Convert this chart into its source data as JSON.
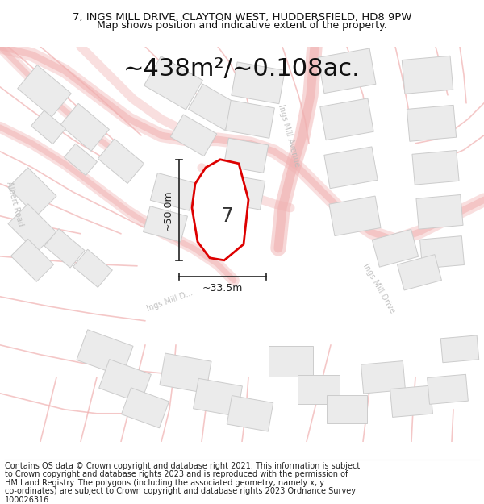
{
  "title_line1": "7, INGS MILL DRIVE, CLAYTON WEST, HUDDERSFIELD, HD8 9PW",
  "title_line2": "Map shows position and indicative extent of the property.",
  "area_text": "~438m²/~0.108ac.",
  "dim_height": "~50.0m",
  "dim_width": "~33.5m",
  "plot_number": "7",
  "footer_lines": [
    "Contains OS data © Crown copyright and database right 2021. This information is subject",
    "to Crown copyright and database rights 2023 and is reproduced with the permission of",
    "HM Land Registry. The polygons (including the associated geometry, namely x, y",
    "co-ordinates) are subject to Crown copyright and database rights 2023 Ordnance Survey",
    "100026316."
  ],
  "bg_color": "#ffffff",
  "map_bg": "#ffffff",
  "road_color": "#f0b0b0",
  "road_lw_main": 6,
  "road_lw_thin": 1.2,
  "building_facecolor": "#ebebeb",
  "building_edgecolor": "#cccccc",
  "plot_edgecolor": "#dd0000",
  "plot_facecolor": "#ffffff",
  "plot_lw": 2.0,
  "dim_color": "#222222",
  "label_color": "#bbbbbb",
  "title_fontsize": 9.5,
  "subtitle_fontsize": 9.0,
  "area_fontsize": 22,
  "plot_num_fontsize": 18,
  "dim_fontsize": 9,
  "road_label_fontsize": 7,
  "footer_fontsize": 7.0
}
